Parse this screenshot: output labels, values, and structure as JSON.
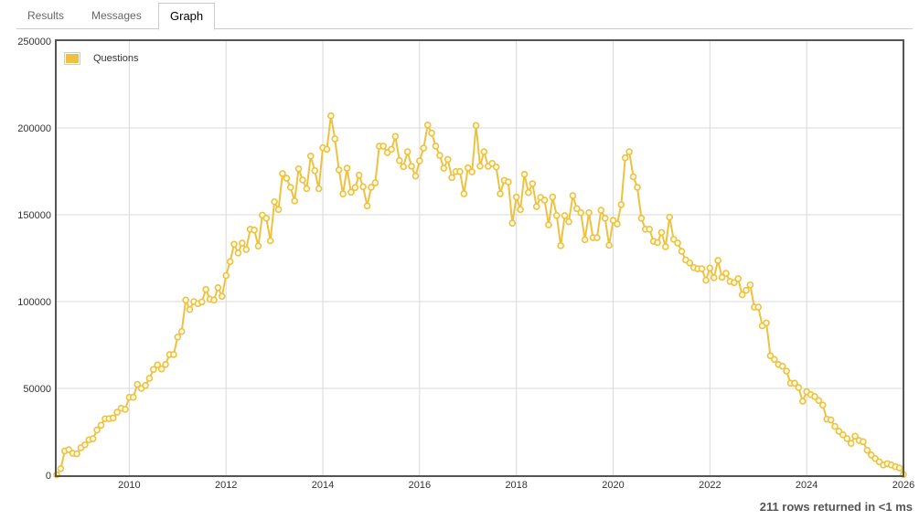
{
  "tabs": [
    {
      "label": "Results",
      "active": false
    },
    {
      "label": "Messages",
      "active": false
    },
    {
      "label": "Graph",
      "active": true
    }
  ],
  "footer": {
    "status": "211 rows returned in <1 ms"
  },
  "colors": {
    "series": "#edc240",
    "marker_fill": "#fffbe6",
    "frame": "#545454",
    "grid": "#d9d9d9"
  },
  "chart_data": {
    "type": "line",
    "title": "",
    "xlabel": "",
    "ylabel": "",
    "xlim": [
      "2008-07",
      "2026-01"
    ],
    "ylim": [
      0,
      250000
    ],
    "yticks": [
      "0",
      "50000",
      "100000",
      "150000",
      "200000",
      "250000"
    ],
    "xticks": [
      "2010",
      "2012",
      "2014",
      "2016",
      "2018",
      "2020",
      "2022",
      "2024",
      "2026"
    ],
    "grid": true,
    "legend": "top-left",
    "markers": "circle",
    "x_start": "2008-07",
    "x_step": "1 month",
    "series": [
      {
        "name": "Questions",
        "values": [
          200,
          3800,
          14000,
          14700,
          12600,
          12300,
          15800,
          17500,
          20400,
          21000,
          26000,
          28800,
          32500,
          32600,
          33000,
          36300,
          38600,
          37900,
          44900,
          44900,
          52300,
          50000,
          51700,
          55800,
          60900,
          63500,
          61200,
          63800,
          69500,
          69500,
          79600,
          82800,
          100900,
          95400,
          100000,
          98800,
          99800,
          107000,
          101400,
          100900,
          108000,
          103000,
          115000,
          123000,
          133000,
          128000,
          133700,
          130000,
          141700,
          141200,
          132000,
          149800,
          148000,
          135000,
          157500,
          153000,
          173700,
          171000,
          165800,
          158000,
          176500,
          170000,
          165000,
          183800,
          175400,
          165000,
          188600,
          187700,
          207000,
          193700,
          175800,
          162000,
          176800,
          163000,
          165600,
          172800,
          166100,
          155100,
          165800,
          168400,
          189500,
          189500,
          185800,
          187700,
          195100,
          181200,
          177700,
          186300,
          177900,
          172300,
          181000,
          188400,
          201700,
          197000,
          189500,
          184200,
          176800,
          181900,
          171400,
          174900,
          174900,
          162100,
          177000,
          174700,
          201400,
          178000,
          186300,
          177900,
          179600,
          177500,
          162100,
          169800,
          168900,
          145100,
          160200,
          153000,
          173300,
          162800,
          167900,
          154700,
          160000,
          158400,
          144200,
          160200,
          149600,
          132200,
          149500,
          146000,
          161000,
          153500,
          151200,
          135600,
          151200,
          136800,
          136800,
          152600,
          148000,
          132400,
          146800,
          144700,
          155800,
          182800,
          186300,
          171900,
          165800,
          148000,
          141700,
          141700,
          134700,
          134000,
          139800,
          131600,
          148600,
          135900,
          133700,
          128900,
          124000,
          122300,
          119600,
          118900,
          118900,
          112300,
          119300,
          113700,
          123700,
          114000,
          116300,
          111600,
          110900,
          113200,
          103900,
          106500,
          109600,
          96800,
          96800,
          86000,
          87700,
          68800,
          66700,
          63800,
          62800,
          60000,
          53000,
          53000,
          50500,
          42600,
          48100,
          46500,
          45300,
          43000,
          40400,
          32300,
          31900,
          28100,
          25300,
          23300,
          21100,
          18300,
          22500,
          20000,
          19300,
          14400,
          11700,
          9600,
          7700,
          5900,
          6700,
          5900,
          4900,
          4200,
          400
        ]
      }
    ]
  }
}
